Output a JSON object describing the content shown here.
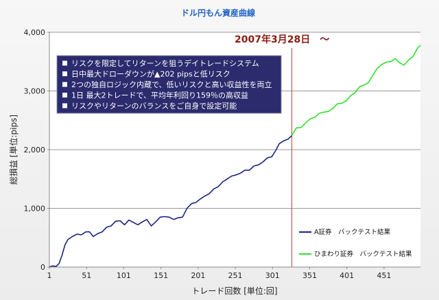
{
  "chart_data": {
    "type": "line",
    "title": "ドル円もん資産曲線",
    "xlabel": "トレード回数 [単位:回]",
    "ylabel": "総損益 [単位:pips]",
    "xlim": [
      1,
      500
    ],
    "ylim": [
      0,
      4000
    ],
    "x_ticks": [
      "1",
      "51",
      "101",
      "151",
      "201",
      "251",
      "301",
      "351",
      "401",
      "451"
    ],
    "y_ticks": [
      "0",
      "1,000",
      "2,000",
      "3,000",
      "4,000"
    ],
    "annotation": "2007年3月28日　～",
    "split_x": 327,
    "info_lines": [
      "リスクを限定してリターンを狙うデイトレードシステム",
      "日中最大ドローダウンが▲202 pipsと低リスク",
      "2つの独自ロジック内蔵で、低いリスクと高い収益性を両立",
      "1日 最大2トレードで、平均年利回り159％の高収益",
      "リスクやリターンのバランスをご自身で設定可能"
    ],
    "legend_position": "bottom-right",
    "series": [
      {
        "name": "A証券　バックテスト結果",
        "color": "#1a237e",
        "x": [
          1,
          5,
          10,
          14,
          18,
          22,
          26,
          32,
          38,
          44,
          50,
          55,
          60,
          66,
          72,
          78,
          84,
          90,
          96,
          102,
          108,
          114,
          120,
          126,
          132,
          138,
          144,
          150,
          156,
          162,
          168,
          174,
          180,
          186,
          192,
          198,
          204,
          210,
          216,
          222,
          228,
          234,
          240,
          246,
          252,
          258,
          264,
          270,
          276,
          282,
          288,
          294,
          300,
          306,
          310,
          316,
          322,
          327
        ],
        "y": [
          0,
          20,
          10,
          60,
          200,
          380,
          470,
          520,
          560,
          550,
          600,
          600,
          520,
          570,
          600,
          680,
          700,
          780,
          790,
          720,
          800,
          760,
          720,
          770,
          810,
          700,
          770,
          850,
          860,
          850,
          810,
          840,
          850,
          1000,
          1080,
          1100,
          1160,
          1210,
          1250,
          1330,
          1370,
          1450,
          1500,
          1550,
          1570,
          1600,
          1650,
          1650,
          1720,
          1740,
          1790,
          1860,
          1880,
          2000,
          2100,
          2150,
          2180,
          2240
        ]
      },
      {
        "name": "ひまわり証券　バックテスト結果",
        "color": "#2ee02e",
        "x": [
          327,
          333,
          340,
          346,
          352,
          358,
          364,
          370,
          376,
          382,
          388,
          394,
          400,
          406,
          412,
          418,
          424,
          430,
          436,
          442,
          448,
          454,
          460,
          466,
          472,
          478,
          484,
          490,
          496,
          500
        ],
        "y": [
          2240,
          2370,
          2380,
          2460,
          2530,
          2550,
          2620,
          2640,
          2650,
          2700,
          2780,
          2790,
          2830,
          2920,
          2970,
          3070,
          3100,
          3140,
          3270,
          3390,
          3450,
          3490,
          3500,
          3550,
          3480,
          3440,
          3530,
          3590,
          3730,
          3780
        ]
      }
    ]
  }
}
